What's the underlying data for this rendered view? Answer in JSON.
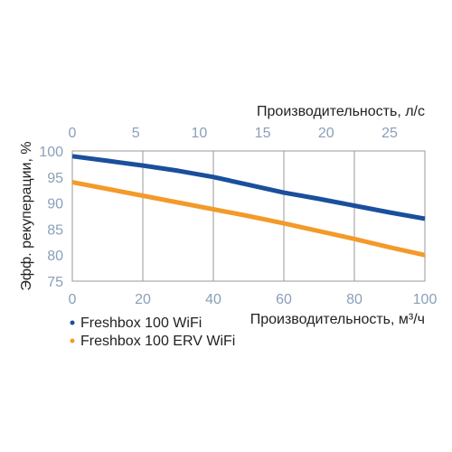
{
  "chart_data": {
    "type": "line",
    "xlabel": "Производительность, м³/ч",
    "x2label": "Производительность, л/с",
    "ylabel": "Эфф. рекуперации, %",
    "xlim": [
      0,
      100
    ],
    "x2lim": [
      0,
      27.78
    ],
    "ylim": [
      75,
      100
    ],
    "xticks": [
      0,
      20,
      40,
      60,
      80,
      100
    ],
    "x2ticks": [
      0,
      5,
      10,
      15,
      20,
      25
    ],
    "yticks": [
      75,
      80,
      85,
      90,
      95,
      100
    ],
    "grid": "vertical",
    "legend_position": "bottom-left",
    "series": [
      {
        "name": "Freshbox 100 WiFi",
        "color": "#1a4f9c",
        "x": [
          0,
          10,
          20,
          30,
          40,
          50,
          60,
          70,
          80,
          90,
          100
        ],
        "y": [
          99,
          98.1,
          97.2,
          96.2,
          95,
          93.5,
          92,
          90.8,
          89.5,
          88.2,
          87
        ]
      },
      {
        "name": "Freshbox 100 ERV WiFi",
        "color": "#f39a2a",
        "x": [
          0,
          10,
          20,
          30,
          40,
          50,
          60,
          70,
          80,
          90,
          100
        ],
        "y": [
          94,
          92.7,
          91.4,
          90.1,
          88.8,
          87.5,
          86.1,
          84.6,
          83.1,
          81.5,
          80
        ]
      }
    ]
  }
}
